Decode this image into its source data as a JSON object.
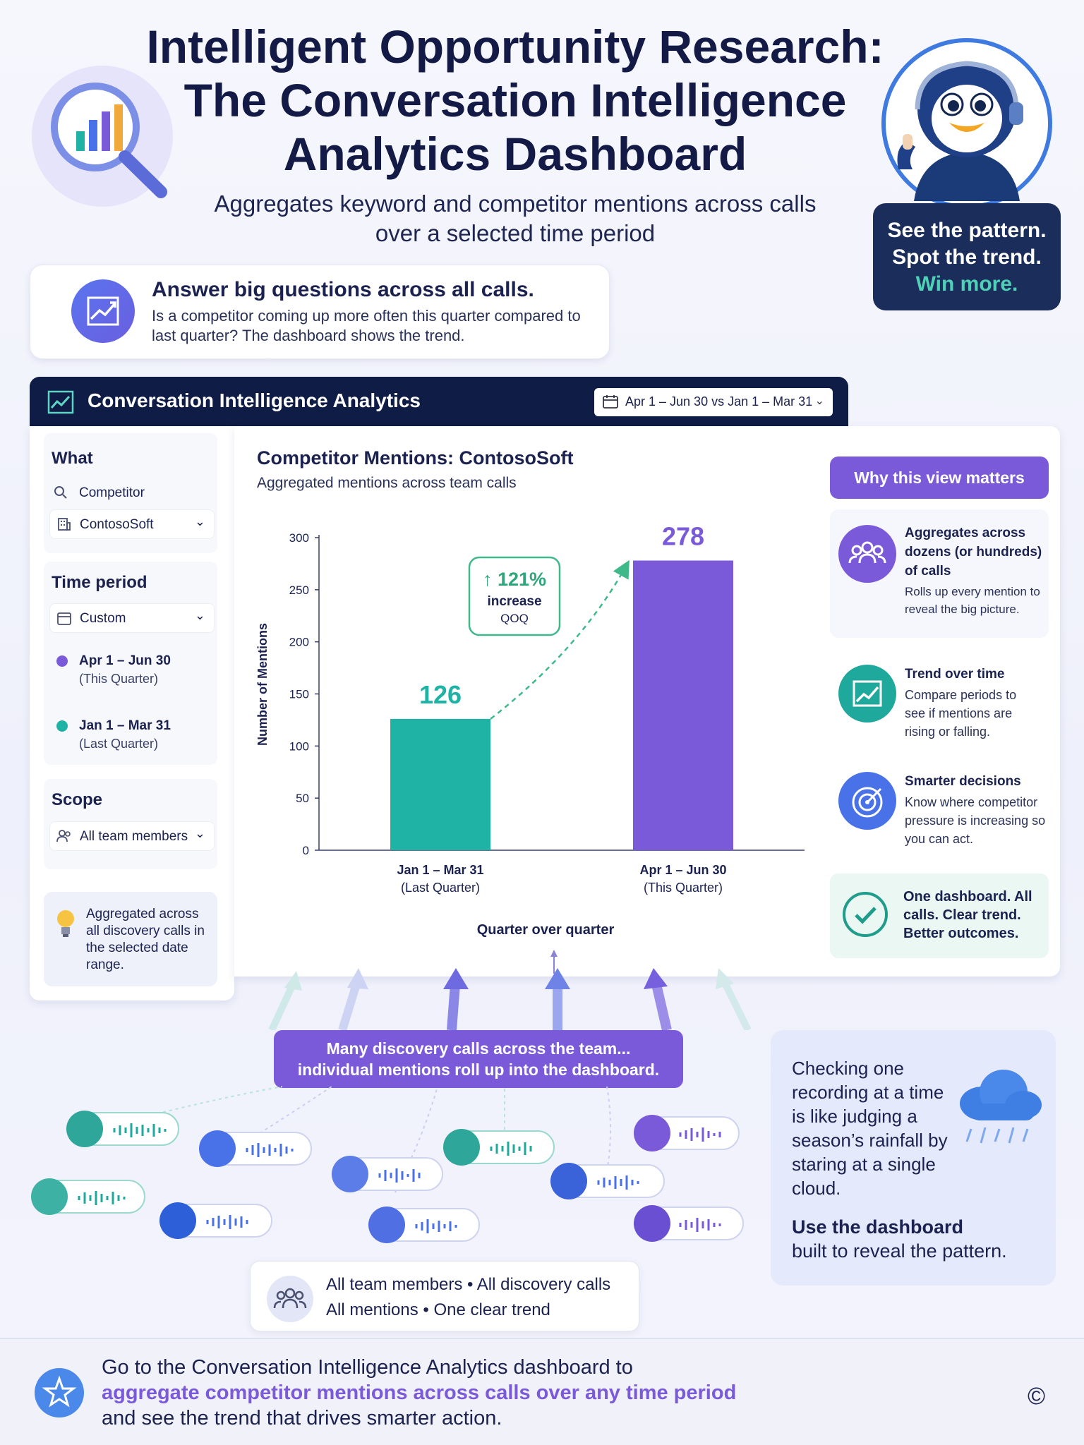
{
  "header": {
    "title_line1": "Intelligent Opportunity Research:",
    "title_line2": "The Conversation Intelligence",
    "title_line3": "Analytics Dashboard",
    "subtitle_line1": "Aggregates keyword and competitor mentions across calls",
    "subtitle_line2": "over a selected time period",
    "tagline_line1": "See the pattern.",
    "tagline_line2": "Spot the trend.",
    "tagline_line3": "Win more."
  },
  "question": {
    "title": "Answer big questions across all calls.",
    "body": "Is a competitor coming up more often this quarter compared to last quarter? The dashboard shows the trend.",
    "icon": "trend-chart-icon"
  },
  "dashboard": {
    "title": "Conversation Intelligence Analytics",
    "date_range": "Apr 1 – Jun 30 vs Jan 1 – Mar 31",
    "what": {
      "label": "What",
      "field_label": "Competitor",
      "selected": "ContosoSoft"
    },
    "time_period": {
      "label": "Time period",
      "selected": "Custom",
      "periods": [
        {
          "range": "Apr 1 – Jun 30",
          "note": "(This Quarter)",
          "color": "#7a5ad9"
        },
        {
          "range": "Jan 1 – Mar 31",
          "note": "(Last Quarter)",
          "color": "#1fb3a5"
        }
      ]
    },
    "scope": {
      "label": "Scope",
      "selected": "All team members"
    },
    "tip": "Aggregated across all discovery calls in the selected date range."
  },
  "chart_data": {
    "type": "bar",
    "title": "Competitor Mentions: ContosoSoft",
    "subtitle": "Aggregated mentions across team calls",
    "categories": [
      "Jan 1 – Mar 31\n(Last Quarter)",
      "Apr 1 – Jun 30\n(This Quarter)"
    ],
    "category_lines": [
      [
        "Jan 1 – Mar 31",
        "(Last Quarter)"
      ],
      [
        "Apr 1 – Jun 30",
        "(This Quarter)"
      ]
    ],
    "values": [
      126,
      278
    ],
    "colors": [
      "#1fb3a5",
      "#7a5ad9"
    ],
    "xlabel": "Quarter over quarter",
    "ylabel": "Number of Mentions",
    "ylim": [
      0,
      300
    ],
    "yticks": [
      0,
      50,
      100,
      150,
      200,
      250,
      300
    ],
    "grid": false,
    "annotation": {
      "value": "121%",
      "line2": "increase",
      "line3": "QOQ"
    }
  },
  "why": {
    "header": "Why this view matters",
    "items": [
      {
        "title": "Aggregates across dozens (or hundreds) of calls",
        "body": "Rolls up every mention to reveal the big picture.",
        "icon": "team-icon",
        "color": "#7a5ad9"
      },
      {
        "title": "Trend over time",
        "body": "Compare periods to see if mentions are rising or falling.",
        "icon": "trend-icon",
        "color": "#1fa89c"
      },
      {
        "title": "Smarter decisions",
        "body": "Know where competitor pressure is increasing so you can act.",
        "icon": "target-icon",
        "color": "#4a72e8"
      }
    ],
    "closing": "One dashboard. All calls. Clear trend. Better outcomes."
  },
  "bottom": {
    "rollup_line1": "Many discovery calls across the team...",
    "rollup_line2": "individual mentions roll up into the dashboard.",
    "analogy": "Checking one recording at a time is like judging a season’s rainfall by staring at a single cloud.",
    "cta_bold": "Use the dashboard",
    "cta_rest": "built to reveal the pattern.",
    "summary_line1": "All team members • All discovery calls",
    "summary_line2": "All mentions • One clear trend"
  },
  "footer": {
    "line1": "Go to the Conversation Intelligence Analytics dashboard to",
    "line2": "aggregate competitor mentions across calls over any time period",
    "line3": "and see the trend that drives smarter action.",
    "copyright": "©"
  }
}
